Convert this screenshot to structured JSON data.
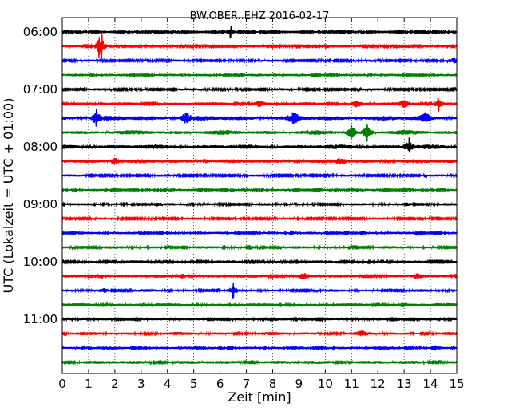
{
  "chart_data": {
    "type": "line",
    "title": "BW.OBER..EHZ 2016-02-17",
    "xlabel": "Zeit  [min]",
    "ylabel": "UTC (Lokalzeit = UTC + 01:00)",
    "xlim": [
      0,
      15
    ],
    "x_ticks": [
      "0",
      "1",
      "2",
      "3",
      "4",
      "5",
      "6",
      "7",
      "8",
      "9",
      "10",
      "11",
      "12",
      "13",
      "14",
      "15"
    ],
    "y_tick_labels": [
      "06:00",
      "07:00",
      "08:00",
      "09:00",
      "10:00",
      "11:00"
    ],
    "grid": true,
    "colors": [
      "#000000",
      "#ff0000",
      "#0000ff",
      "#008000"
    ],
    "traces": [
      {
        "start": "06:00",
        "color": "#000000",
        "amplitude": 0.2,
        "events": [
          {
            "x": 6.4,
            "amp": 0.9
          }
        ]
      },
      {
        "start": "06:15",
        "color": "#ff0000",
        "amplitude": 0.25,
        "events": [
          {
            "x": 1.4,
            "amp": 1.6
          },
          {
            "x": 1.5,
            "amp": 1.8
          },
          {
            "x": 10.0,
            "amp": 0.7
          }
        ]
      },
      {
        "start": "06:30",
        "color": "#0000ff",
        "amplitude": 0.25,
        "events": [
          {
            "x": 14.9,
            "amp": 0.8
          }
        ]
      },
      {
        "start": "06:45",
        "color": "#008000",
        "amplitude": 0.3,
        "events": []
      },
      {
        "start": "07:00",
        "color": "#000000",
        "amplitude": 0.25,
        "events": []
      },
      {
        "start": "07:15",
        "color": "#ff0000",
        "amplitude": 0.35,
        "events": [
          {
            "x": 7.5,
            "amp": 0.7
          },
          {
            "x": 11.2,
            "amp": 0.8
          },
          {
            "x": 13.0,
            "amp": 0.8
          },
          {
            "x": 14.3,
            "amp": 1.0
          }
        ]
      },
      {
        "start": "07:30",
        "color": "#0000ff",
        "amplitude": 0.55,
        "events": [
          {
            "x": 1.3,
            "amp": 0.9
          },
          {
            "x": 4.7,
            "amp": 0.8
          },
          {
            "x": 8.8,
            "amp": 0.8
          },
          {
            "x": 13.8,
            "amp": 0.8
          }
        ]
      },
      {
        "start": "07:45",
        "color": "#008000",
        "amplitude": 0.5,
        "events": [
          {
            "x": 11.0,
            "amp": 0.9
          },
          {
            "x": 11.6,
            "amp": 1.0
          }
        ]
      },
      {
        "start": "08:00",
        "color": "#000000",
        "amplitude": 0.5,
        "events": [
          {
            "x": 13.2,
            "amp": 0.9
          }
        ]
      },
      {
        "start": "08:15",
        "color": "#ff0000",
        "amplitude": 0.45,
        "events": [
          {
            "x": 2.0,
            "amp": 0.7
          },
          {
            "x": 10.6,
            "amp": 0.6
          }
        ]
      },
      {
        "start": "08:30",
        "color": "#0000ff",
        "amplitude": 0.25,
        "events": []
      },
      {
        "start": "08:45",
        "color": "#008000",
        "amplitude": 0.25,
        "events": [
          {
            "x": 7.0,
            "amp": 0.5
          }
        ]
      },
      {
        "start": "09:00",
        "color": "#000000",
        "amplitude": 0.28,
        "events": [
          {
            "x": 3.6,
            "amp": 0.5
          },
          {
            "x": 13.1,
            "amp": 0.5
          }
        ]
      },
      {
        "start": "09:15",
        "color": "#ff0000",
        "amplitude": 0.25,
        "events": []
      },
      {
        "start": "09:30",
        "color": "#0000ff",
        "amplitude": 0.28,
        "events": [
          {
            "x": 11.4,
            "amp": 0.5
          }
        ]
      },
      {
        "start": "09:45",
        "color": "#008000",
        "amplitude": 0.3,
        "events": [
          {
            "x": 7.1,
            "amp": 0.6
          }
        ]
      },
      {
        "start": "10:00",
        "color": "#000000",
        "amplitude": 0.3,
        "events": []
      },
      {
        "start": "10:15",
        "color": "#ff0000",
        "amplitude": 0.35,
        "events": [
          {
            "x": 4.6,
            "amp": 0.6
          },
          {
            "x": 9.2,
            "amp": 0.6
          },
          {
            "x": 13.5,
            "amp": 0.6
          }
        ]
      },
      {
        "start": "10:30",
        "color": "#0000ff",
        "amplitude": 0.3,
        "events": [
          {
            "x": 1.6,
            "amp": 0.6
          },
          {
            "x": 6.5,
            "amp": 1.0
          }
        ]
      },
      {
        "start": "10:45",
        "color": "#008000",
        "amplitude": 0.38,
        "events": [
          {
            "x": 13.0,
            "amp": 0.5
          }
        ]
      },
      {
        "start": "11:00",
        "color": "#000000",
        "amplitude": 0.28,
        "events": [
          {
            "x": 8.0,
            "amp": 0.6
          }
        ]
      },
      {
        "start": "11:15",
        "color": "#ff0000",
        "amplitude": 0.35,
        "events": [
          {
            "x": 11.4,
            "amp": 0.5
          }
        ]
      },
      {
        "start": "11:30",
        "color": "#0000ff",
        "amplitude": 0.35,
        "events": [
          {
            "x": 14.2,
            "amp": 0.5
          }
        ]
      },
      {
        "start": "11:45",
        "color": "#008000",
        "amplitude": 0.38,
        "events": []
      }
    ]
  }
}
